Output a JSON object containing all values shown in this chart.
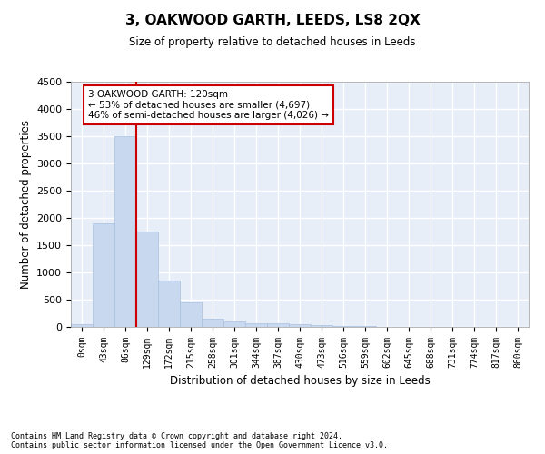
{
  "title": "3, OAKWOOD GARTH, LEEDS, LS8 2QX",
  "subtitle": "Size of property relative to detached houses in Leeds",
  "xlabel": "Distribution of detached houses by size in Leeds",
  "ylabel": "Number of detached properties",
  "bar_color": "#c8d8ee",
  "bar_edge_color": "#a8c0e0",
  "background_color": "#e8eef8",
  "grid_color": "#ffffff",
  "categories": [
    "0sqm",
    "43sqm",
    "86sqm",
    "129sqm",
    "172sqm",
    "215sqm",
    "258sqm",
    "301sqm",
    "344sqm",
    "387sqm",
    "430sqm",
    "473sqm",
    "516sqm",
    "559sqm",
    "602sqm",
    "645sqm",
    "688sqm",
    "731sqm",
    "774sqm",
    "817sqm",
    "860sqm"
  ],
  "values": [
    50,
    1900,
    3500,
    1750,
    850,
    450,
    150,
    100,
    75,
    60,
    50,
    40,
    20,
    10,
    5,
    3,
    2,
    1,
    1,
    0,
    0
  ],
  "vline_color": "#cc0000",
  "vline_pos": 2.5,
  "annotation_text": "3 OAKWOOD GARTH: 120sqm\n← 53% of detached houses are smaller (4,697)\n46% of semi-detached houses are larger (4,026) →",
  "annotation_box_color": "#ffffff",
  "annotation_box_edge_color": "#cc0000",
  "ylim": [
    0,
    4500
  ],
  "yticks": [
    0,
    500,
    1000,
    1500,
    2000,
    2500,
    3000,
    3500,
    4000,
    4500
  ],
  "footer_line1": "Contains HM Land Registry data © Crown copyright and database right 2024.",
  "footer_line2": "Contains public sector information licensed under the Open Government Licence v3.0."
}
